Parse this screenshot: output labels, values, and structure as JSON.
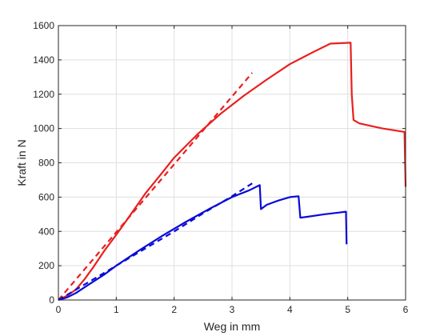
{
  "chart_data": {
    "type": "line",
    "title": "",
    "xlabel": "Weg in mm",
    "ylabel": "Kraft in N",
    "xlim": [
      0,
      6
    ],
    "ylim": [
      0,
      1600
    ],
    "xticks": [
      0,
      1,
      2,
      3,
      4,
      5,
      6
    ],
    "yticks": [
      0,
      200,
      400,
      600,
      800,
      1000,
      1200,
      1400,
      1600
    ],
    "grid": true,
    "series": [
      {
        "color": "#e8201f",
        "style": "solid",
        "points": [
          [
            0,
            0
          ],
          [
            0.15,
            25
          ],
          [
            0.3,
            60
          ],
          [
            0.45,
            120
          ],
          [
            0.6,
            190
          ],
          [
            0.8,
            290
          ],
          [
            1.0,
            380
          ],
          [
            1.2,
            475
          ],
          [
            1.5,
            620
          ],
          [
            1.8,
            745
          ],
          [
            2.0,
            830
          ],
          [
            2.4,
            965
          ],
          [
            2.8,
            1085
          ],
          [
            3.2,
            1190
          ],
          [
            3.6,
            1285
          ],
          [
            4.0,
            1375
          ],
          [
            4.4,
            1445
          ],
          [
            4.7,
            1495
          ],
          [
            5.05,
            1500
          ],
          [
            5.07,
            1200
          ],
          [
            5.1,
            1050
          ],
          [
            5.2,
            1030
          ],
          [
            5.4,
            1015
          ],
          [
            5.6,
            1000
          ],
          [
            5.8,
            990
          ],
          [
            5.98,
            980
          ],
          [
            6.0,
            660
          ]
        ]
      },
      {
        "color": "#e8201f",
        "style": "dashed",
        "points": [
          [
            0,
            0
          ],
          [
            3.35,
            1325
          ]
        ]
      },
      {
        "color": "#0a0ad8",
        "style": "solid",
        "points": [
          [
            0,
            0
          ],
          [
            0.15,
            15
          ],
          [
            0.3,
            40
          ],
          [
            0.5,
            85
          ],
          [
            0.8,
            150
          ],
          [
            1.0,
            200
          ],
          [
            1.4,
            290
          ],
          [
            1.8,
            375
          ],
          [
            2.2,
            455
          ],
          [
            2.6,
            530
          ],
          [
            3.0,
            600
          ],
          [
            3.3,
            640
          ],
          [
            3.48,
            670
          ],
          [
            3.5,
            530
          ],
          [
            3.6,
            555
          ],
          [
            3.8,
            580
          ],
          [
            4.0,
            600
          ],
          [
            4.15,
            605
          ],
          [
            4.18,
            480
          ],
          [
            4.3,
            485
          ],
          [
            4.6,
            500
          ],
          [
            4.85,
            510
          ],
          [
            4.97,
            515
          ],
          [
            4.98,
            325
          ]
        ]
      },
      {
        "color": "#0a0ad8",
        "style": "dashed",
        "points": [
          [
            0,
            0
          ],
          [
            0.5,
            100
          ],
          [
            1.0,
            200
          ],
          [
            1.5,
            300
          ],
          [
            2.0,
            400
          ],
          [
            2.5,
            505
          ],
          [
            3.0,
            605
          ],
          [
            3.35,
            680
          ]
        ]
      }
    ]
  }
}
